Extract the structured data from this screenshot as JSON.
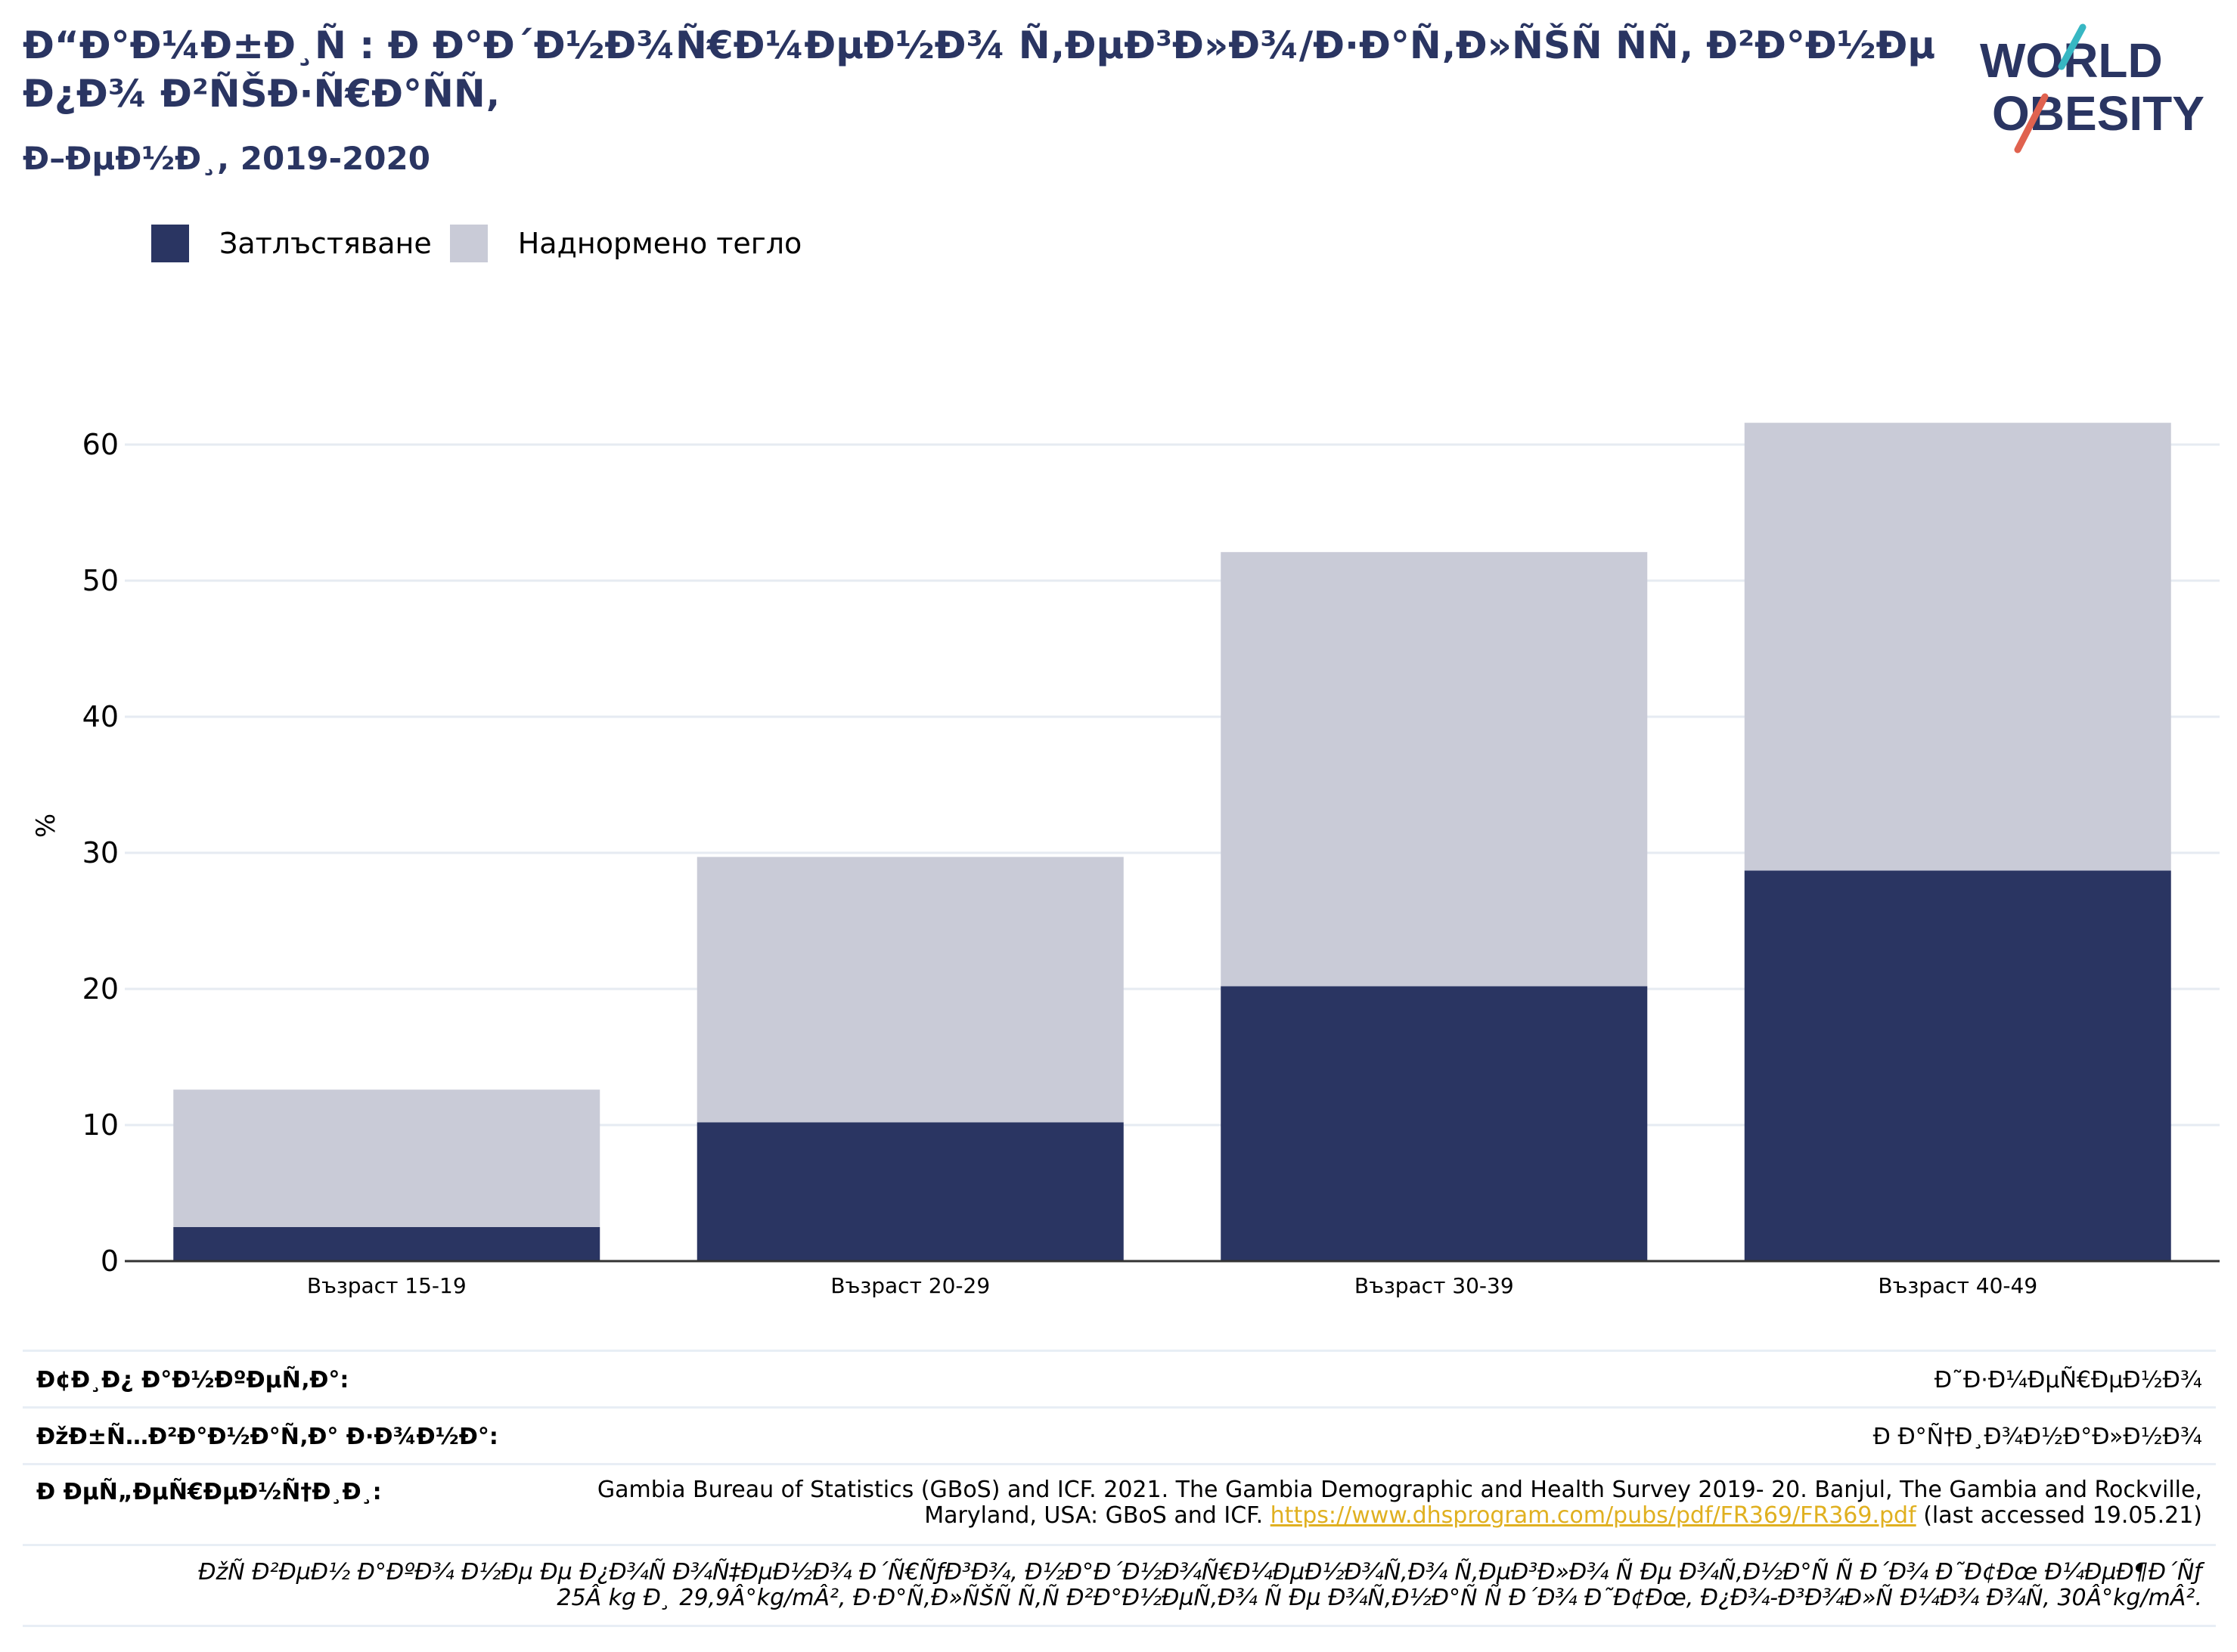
{
  "header": {
    "title": "Ð“Ð°Ð¼Ð±Ð¸Ñ : Ð Ð°Ð´Ð½Ð¾Ñ€Ð¼ÐµÐ½Ð¾ Ñ‚ÐµÐ³Ð»Ð¾/Ð·Ð°Ñ‚Ð»ÑŠÑ ÑÑ‚ Ð²Ð°Ð½Ðµ Ð¿Ð¾ Ð²ÑŠÐ·Ñ€Ð°ÑÑ‚",
    "subtitle": "Ð–ÐµÐ½Ð¸, 2019-2020"
  },
  "logo": {
    "line1": "WORLD",
    "line2": "OBESITY"
  },
  "legend": {
    "obesity": "Затлъстяване",
    "overweight": "Наднормено тегло"
  },
  "colors": {
    "obesity": "#2a3562",
    "overweight": "#c9cbd7",
    "grid": "#e6ebf2",
    "accent_teal": "#37b7c3",
    "accent_red": "#e0624f"
  },
  "chart_data": {
    "type": "bar",
    "stacked": true,
    "categories": [
      "Възраст 15-19",
      "Възраст 20-29",
      "Възраст 30-39",
      "Възраст 40-49"
    ],
    "series": [
      {
        "name": "Затлъстяване",
        "values": [
          2.5,
          10.2,
          20.2,
          28.7
        ]
      },
      {
        "name": "Наднормено тегло",
        "values": [
          10.1,
          19.5,
          31.9,
          32.9
        ]
      }
    ],
    "ylabel": "%",
    "yticks": [
      0,
      10,
      20,
      30,
      40,
      50,
      60
    ],
    "ylim": [
      0,
      70
    ],
    "grid": true,
    "legend_position": "top-left"
  },
  "footer": {
    "survey_type_label": "Ð¢Ð¸Ð¿ Ð°Ð½ÐºÐµÑ‚Ð°:",
    "survey_type_value": "Ð˜Ð·Ð¼ÐµÑ€ÐµÐ½Ð¾",
    "coverage_label": "ÐžÐ±Ñ…Ð²Ð°Ð½Ð°Ñ‚Ð° Ð·Ð¾Ð½Ð°:",
    "coverage_value": "Ð Ð°Ñ†Ð¸Ð¾Ð½Ð°Ð»Ð½Ð¾",
    "references_label": "Ð ÐµÑ„ÐµÑ€ÐµÐ½Ñ†Ð¸Ð¸:",
    "references_line1": "Gambia Bureau of Statistics (GBoS) and ICF. 2021. The Gambia Demographic and Health Survey 2019- 20. Banjul, The Gambia and Rockville,",
    "references_line2": "Maryland, USA: GBoS and ICF.",
    "references_link": "https://www.dhsprogram.com/pubs/pdf/FR369/FR369.pdf",
    "references_tail": "(last accessed 19.05.21)",
    "note_line1": "ÐžÑ Ð²ÐµÐ½ Ð°ÐºÐ¾ Ð½Ðµ Ðµ Ð¿Ð¾Ñ Ð¾Ñ‡ÐµÐ½Ð¾ Ð´Ñ€ÑƒÐ³Ð¾, Ð½Ð°Ð´Ð½Ð¾Ñ€Ð¼ÐµÐ½Ð¾Ñ‚Ð¾ Ñ‚ÐµÐ³Ð»Ð¾ Ñ Ðµ Ð¾Ñ‚Ð½Ð°Ñ Ñ  Ð´Ð¾ Ð˜Ð¢Ðœ Ð¼ÐµÐ¶Ð´Ñƒ",
    "note_line2": "25Â kg Ð¸  29,9Â°kg/mÂ², Ð·Ð°Ñ‚Ð»ÑŠÑ Ñ‚Ñ Ð²Ð°Ð½ÐµÑ‚Ð¾ Ñ Ðµ Ð¾Ñ‚Ð½Ð°Ñ Ñ  Ð´Ð¾ Ð˜Ð¢Ðœ, Ð¿Ð¾-Ð³Ð¾Ð»Ñ Ð¼Ð¾ Ð¾Ñ‚ 30Â°kg/mÂ²."
  }
}
